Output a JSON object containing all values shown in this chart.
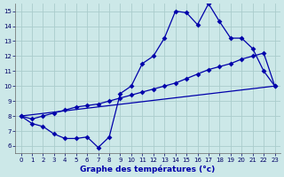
{
  "title": "Graphe des températures (°c)",
  "background_color": "#cce8e8",
  "grid_color": "#aacccc",
  "line_color": "#0000aa",
  "xlim": [
    -0.5,
    23.5
  ],
  "ylim": [
    5.5,
    15.5
  ],
  "yticks": [
    6,
    7,
    8,
    9,
    10,
    11,
    12,
    13,
    14,
    15
  ],
  "xticks": [
    0,
    1,
    2,
    3,
    4,
    5,
    6,
    7,
    8,
    9,
    10,
    11,
    12,
    13,
    14,
    15,
    16,
    17,
    18,
    19,
    20,
    21,
    22,
    23
  ],
  "line1_x": [
    0,
    1,
    2,
    3,
    4,
    5,
    6,
    7,
    8,
    9,
    10,
    11,
    12,
    13,
    14,
    15,
    16,
    17,
    18,
    19,
    20,
    21,
    22,
    23
  ],
  "line1_y": [
    8.0,
    7.5,
    7.3,
    6.8,
    6.5,
    6.5,
    6.6,
    5.9,
    6.6,
    9.5,
    10.0,
    11.5,
    12.0,
    13.2,
    15.0,
    14.9,
    14.1,
    15.5,
    14.3,
    13.2,
    13.2,
    12.5,
    11.0,
    10.0
  ],
  "line2_x": [
    0,
    1,
    2,
    3,
    4,
    5,
    6,
    7,
    8,
    9,
    10,
    11,
    12,
    13,
    14,
    15,
    16,
    17,
    18,
    19,
    20,
    21,
    22,
    23
  ],
  "line2_y": [
    8.0,
    7.8,
    8.0,
    8.2,
    8.4,
    8.6,
    8.7,
    8.8,
    9.0,
    9.2,
    9.4,
    9.6,
    9.8,
    10.0,
    10.2,
    10.5,
    10.8,
    11.1,
    11.3,
    11.5,
    11.8,
    12.0,
    12.2,
    10.0
  ],
  "line3_x": [
    0,
    23
  ],
  "line3_y": [
    8.0,
    10.0
  ]
}
